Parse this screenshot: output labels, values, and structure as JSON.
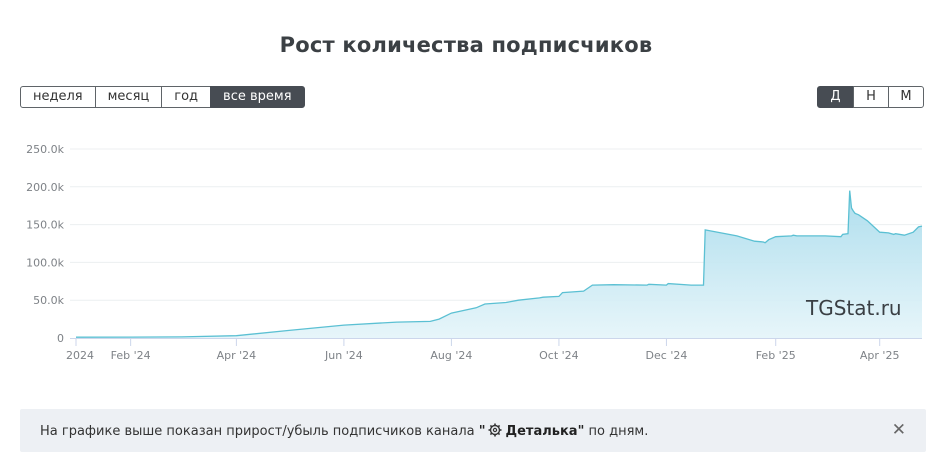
{
  "title": "Рост количества подписчиков",
  "period_buttons": [
    {
      "label": "неделя",
      "active": false
    },
    {
      "label": "месяц",
      "active": false
    },
    {
      "label": "год",
      "active": false
    },
    {
      "label": "все время",
      "active": true
    }
  ],
  "granularity_buttons": [
    {
      "label": "Д",
      "active": true
    },
    {
      "label": "Н",
      "active": false
    },
    {
      "label": "М",
      "active": false
    }
  ],
  "watermark": "TGStat.ru",
  "info": {
    "prefix": "На графике выше показан прирост/убыль подписчиков канала ",
    "quote_open": "\"",
    "channel_icon": "gear-icon",
    "channel_name": "Деталька",
    "quote_close": "\"",
    "suffix": " по дням."
  },
  "chart_data": {
    "type": "area",
    "title": "",
    "xlabel": "",
    "ylabel": "",
    "ylim": [
      0,
      250000
    ],
    "y_ticks": [
      0,
      50000,
      100000,
      150000,
      200000,
      250000
    ],
    "y_tick_labels": [
      "0",
      "50.0k",
      "100.0k",
      "150.0k",
      "200.0k",
      "250.0k"
    ],
    "x_range": [
      "2024-01-01",
      "2025-04-25"
    ],
    "x_ticks": [
      "2024-01-01",
      "2024-02-01",
      "2024-04-01",
      "2024-06-01",
      "2024-08-01",
      "2024-10-01",
      "2024-12-01",
      "2025-02-01",
      "2025-04-01"
    ],
    "x_tick_labels": [
      "2024",
      "Feb '24",
      "Apr '24",
      "Jun '24",
      "Aug '24",
      "Oct '24",
      "Dec '24",
      "Feb '25",
      "Apr '25"
    ],
    "grid": true,
    "series": [
      {
        "color": "#5bc0d3",
        "fill": "#bfe6f1",
        "x": [
          "2024-01-01",
          "2024-02-01",
          "2024-03-01",
          "2024-04-01",
          "2024-05-01",
          "2024-06-01",
          "2024-07-01",
          "2024-07-20",
          "2024-07-25",
          "2024-08-01",
          "2024-08-15",
          "2024-08-20",
          "2024-09-01",
          "2024-09-08",
          "2024-09-20",
          "2024-09-22",
          "2024-10-01",
          "2024-10-03",
          "2024-10-15",
          "2024-10-20",
          "2024-11-01",
          "2024-11-20",
          "2024-11-21",
          "2024-12-01",
          "2024-12-02",
          "2024-12-15",
          "2024-12-22",
          "2024-12-23",
          "2025-01-10",
          "2025-01-20",
          "2025-01-25",
          "2025-01-26",
          "2025-01-28",
          "2025-02-01",
          "2025-02-10",
          "2025-02-11",
          "2025-02-13",
          "2025-03-01",
          "2025-03-10",
          "2025-03-11",
          "2025-03-14",
          "2025-03-15",
          "2025-03-16",
          "2025-03-17",
          "2025-03-18",
          "2025-03-20",
          "2025-03-25",
          "2025-04-01",
          "2025-04-06",
          "2025-04-09",
          "2025-04-10",
          "2025-04-15",
          "2025-04-20",
          "2025-04-23",
          "2025-04-25"
        ],
        "values": [
          1000,
          1200,
          1500,
          3000,
          10000,
          17000,
          21000,
          22000,
          25000,
          33000,
          40000,
          45000,
          47000,
          50000,
          53000,
          54000,
          55000,
          60000,
          62000,
          70000,
          70500,
          70000,
          71000,
          70000,
          72000,
          70000,
          70000,
          143000,
          135000,
          128000,
          127000,
          126000,
          130000,
          134000,
          135000,
          136000,
          135000,
          135000,
          134000,
          137000,
          138000,
          195000,
          172000,
          168000,
          165000,
          163000,
          155000,
          140000,
          139000,
          137000,
          138000,
          136000,
          140000,
          147000,
          148000
        ]
      }
    ]
  }
}
